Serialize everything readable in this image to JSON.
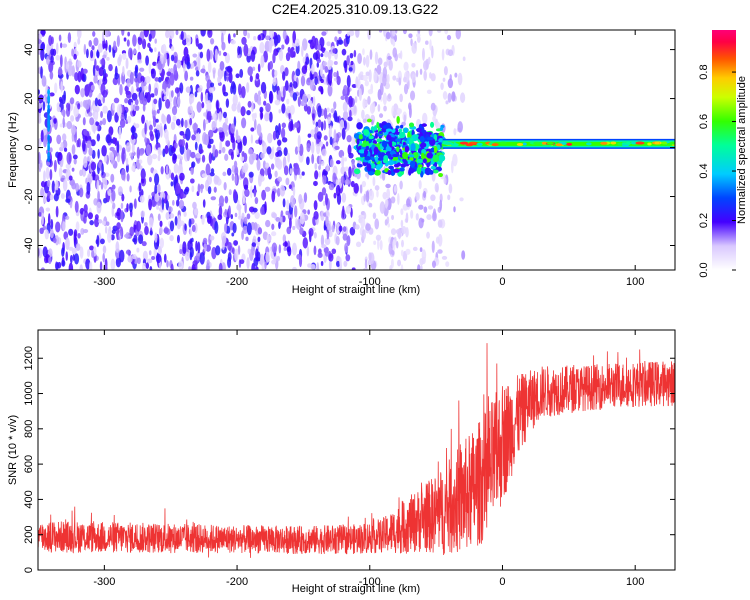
{
  "chart_data": [
    {
      "type": "heatmap",
      "title": "C2E4.2025.310.09.13.G22",
      "xlabel": "Height of straight line (km)",
      "ylabel": "Frequency (Hz)",
      "xlim": [
        -350,
        130
      ],
      "ylim": [
        -50,
        48
      ],
      "xticks": [
        -300,
        -200,
        -100,
        0,
        100
      ],
      "xtick_labels": [
        "-300",
        "-200",
        "-100",
        "0",
        "100"
      ],
      "yticks": [
        -40,
        -20,
        0,
        20,
        40
      ],
      "ytick_labels": [
        "-40",
        "-20",
        "0",
        "20",
        "40"
      ],
      "colorbar": {
        "label": "Normalized spectral amplitude",
        "range": [
          0,
          0.97
        ],
        "ticks": [
          0,
          0.2,
          0.4,
          0.6,
          0.8
        ],
        "tick_labels": [
          "0.0",
          "0.2",
          "0.4",
          "0.6",
          "0.8"
        ]
      },
      "features": {
        "noise_region_km": [
          -350,
          -110
        ],
        "transition_region_km": [
          -110,
          -45
        ],
        "signal_line_start_km": -45,
        "signal_frequency_hz": 1.5,
        "signal_amplitude_range": [
          0.4,
          0.95
        ]
      }
    },
    {
      "type": "line",
      "title": "",
      "xlabel": "Height of straight line (km)",
      "ylabel": "SNR (10 * v/v)",
      "xlim": [
        -350,
        130
      ],
      "ylim": [
        0,
        1360
      ],
      "xticks": [
        -300,
        -200,
        -100,
        0,
        100
      ],
      "xtick_labels": [
        "-300",
        "-200",
        "-100",
        "0",
        "100"
      ],
      "yticks": [
        0,
        200,
        400,
        600,
        800,
        1000,
        1200
      ],
      "ytick_labels": [
        "0",
        "200",
        "400",
        "600",
        "800",
        "1000",
        "1200"
      ],
      "color": "#ee3333",
      "trend": {
        "x": [
          -350,
          -300,
          -250,
          -200,
          -150,
          -110,
          -90,
          -75,
          -60,
          -45,
          -30,
          -20,
          -10,
          0,
          10,
          20,
          30,
          60,
          90,
          130
        ],
        "y_center": [
          190,
          185,
          180,
          175,
          170,
          175,
          195,
          240,
          290,
          330,
          410,
          470,
          560,
          720,
          850,
          950,
          1010,
          1030,
          1050,
          1060
        ],
        "y_spread": [
          90,
          90,
          85,
          80,
          80,
          85,
          100,
          150,
          190,
          250,
          320,
          350,
          380,
          350,
          250,
          180,
          150,
          130,
          130,
          130
        ]
      }
    }
  ]
}
